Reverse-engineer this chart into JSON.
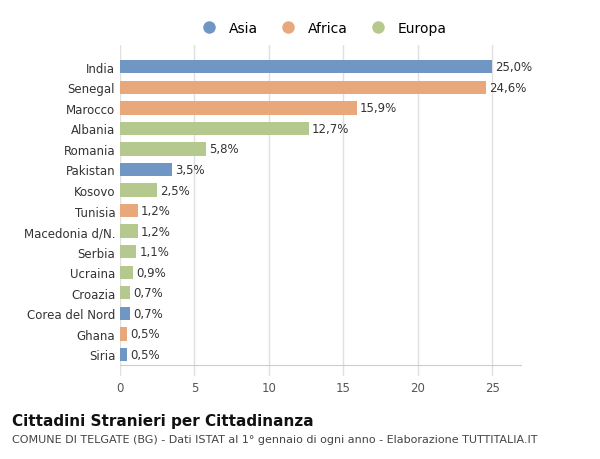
{
  "countries": [
    "India",
    "Senegal",
    "Marocco",
    "Albania",
    "Romania",
    "Pakistan",
    "Kosovo",
    "Tunisia",
    "Macedonia d/N.",
    "Serbia",
    "Ucraina",
    "Croazia",
    "Corea del Nord",
    "Ghana",
    "Siria"
  ],
  "values": [
    25.0,
    24.6,
    15.9,
    12.7,
    5.8,
    3.5,
    2.5,
    1.2,
    1.2,
    1.1,
    0.9,
    0.7,
    0.7,
    0.5,
    0.5
  ],
  "labels": [
    "25,0%",
    "24,6%",
    "15,9%",
    "12,7%",
    "5,8%",
    "3,5%",
    "2,5%",
    "1,2%",
    "1,2%",
    "1,1%",
    "0,9%",
    "0,7%",
    "0,7%",
    "0,5%",
    "0,5%"
  ],
  "continent": [
    "Asia",
    "Africa",
    "Africa",
    "Europa",
    "Europa",
    "Asia",
    "Europa",
    "Africa",
    "Europa",
    "Europa",
    "Europa",
    "Europa",
    "Asia",
    "Africa",
    "Asia"
  ],
  "colors": {
    "Asia": "#7096c4",
    "Africa": "#e8a87c",
    "Europa": "#b5c98e"
  },
  "legend_order": [
    "Asia",
    "Africa",
    "Europa"
  ],
  "title": "Cittadini Stranieri per Cittadinanza",
  "subtitle": "COMUNE DI TELGATE (BG) - Dati ISTAT al 1° gennaio di ogni anno - Elaborazione TUTTITALIA.IT",
  "xlim": [
    0,
    27
  ],
  "xticks": [
    0,
    5,
    10,
    15,
    20,
    25
  ],
  "fig_bg_color": "#ffffff",
  "plot_bg_color": "#ffffff",
  "grid_color": "#e0e0e0",
  "bar_height": 0.65,
  "title_fontsize": 11,
  "subtitle_fontsize": 8,
  "legend_fontsize": 10,
  "tick_fontsize": 8.5,
  "label_fontsize": 8.5
}
